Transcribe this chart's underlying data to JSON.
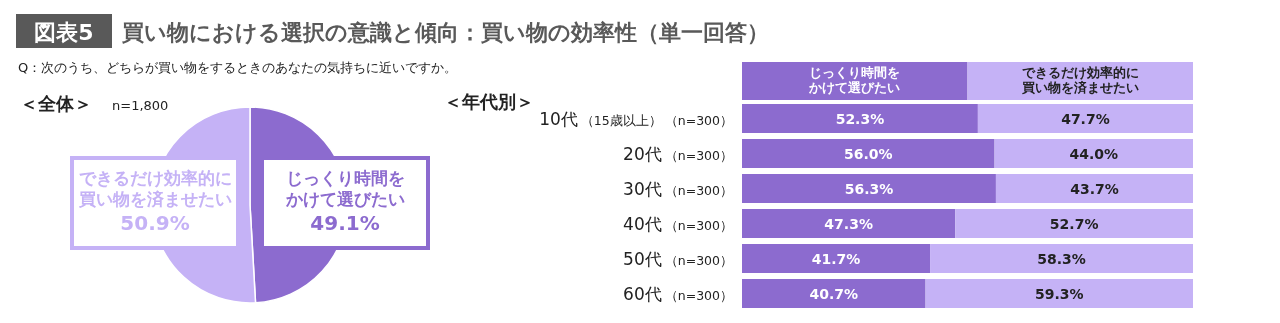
{
  "chart_data": [
    {
      "type": "pie",
      "title": "＜全体＞",
      "subtitle": "n=1,800",
      "annotations": [
        "図表5",
        "買い物における選択の意識と傾向：買い物の効率性（単一回答）",
        "Q：次のうち、どちらが買い物をするときのあなたの気持ちに近いですか。"
      ],
      "categories": [
        "じっくり時間をかけて選びたい",
        "できるだけ効率的に買い物を済ませたい"
      ],
      "values": [
        49.1,
        50.9
      ],
      "colors": [
        "#8c6bcf",
        "#c5b2f6"
      ],
      "value_labels": [
        "49.1%",
        "50.9%"
      ]
    },
    {
      "type": "bar",
      "orientation": "horizontal",
      "stacked": true,
      "title": "＜年代別＞",
      "categories": [
        "10代（15歳以上）（n=300）",
        "20代（n=300）",
        "30代（n=300）",
        "40代（n=300）",
        "50代（n=300）",
        "60代（n=300）"
      ],
      "xlim": [
        0,
        100
      ],
      "tick_labels": "y",
      "legend": "top",
      "series": [
        {
          "name": "じっくり時間をかけて選びたい",
          "color": "#8c6bcf",
          "values": [
            52.3,
            56.0,
            56.3,
            47.3,
            41.7,
            40.7
          ],
          "value_labels": [
            "52.3%",
            "56.0%",
            "56.3%",
            "47.3%",
            "41.7%",
            "40.7%"
          ]
        },
        {
          "name": "できるだけ効率的に買い物を済ませたい",
          "color": "#c5b2f6",
          "values": [
            47.7,
            44.0,
            43.7,
            52.7,
            58.3,
            59.3
          ],
          "value_labels": [
            "47.7%",
            "44.0%",
            "43.7%",
            "52.7%",
            "58.3%",
            "59.3%"
          ]
        }
      ]
    }
  ]
}
